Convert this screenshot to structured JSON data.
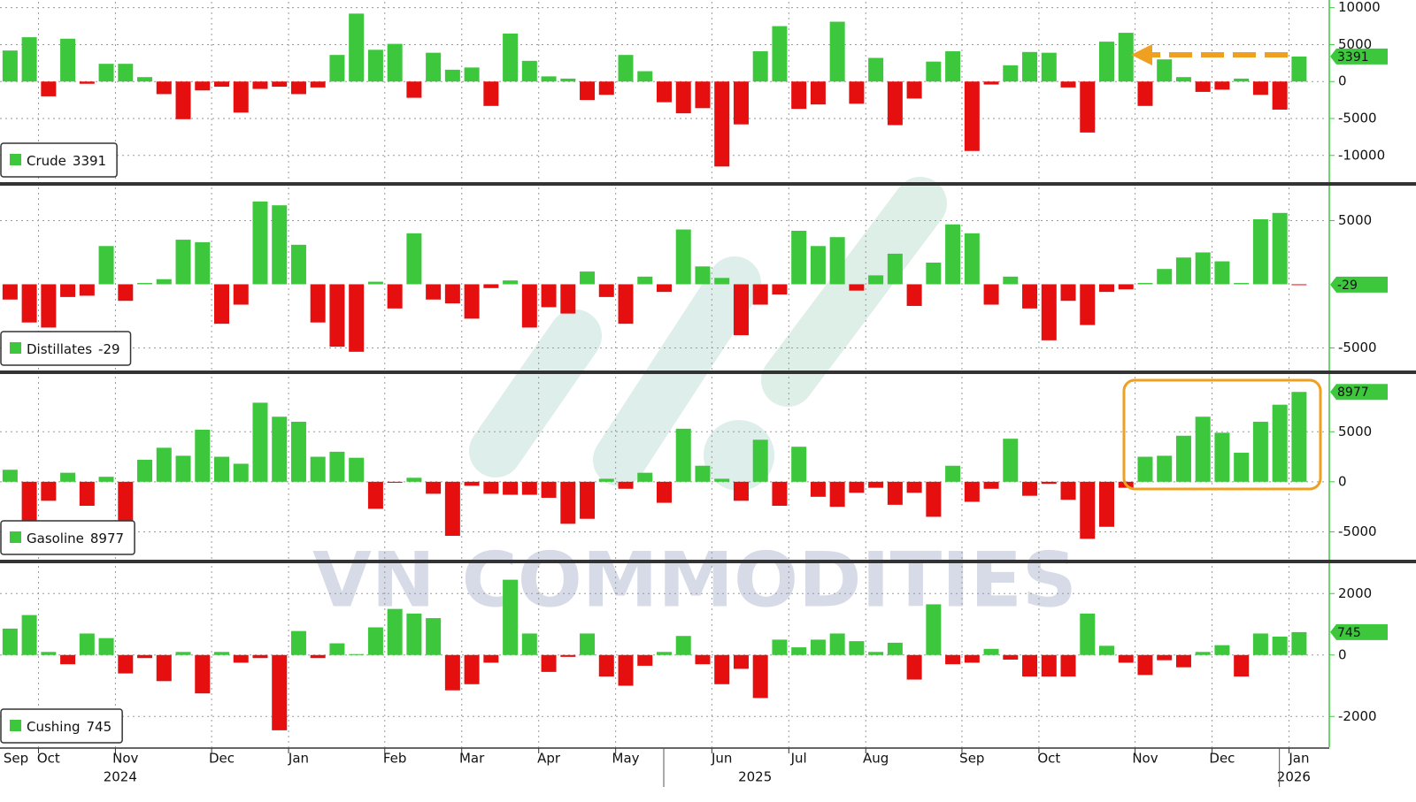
{
  "watermark": "VN COMMODITIES",
  "chart_data": [
    {
      "type": "bar",
      "grid": true,
      "legend": "bottom-left",
      "ylim": [
        -13500,
        10800
      ],
      "yticks": [
        10000,
        5000,
        0,
        -5000,
        -10000
      ],
      "series": [
        {
          "name": "Crude",
          "color": "#3dc73d",
          "negative_color": "#e50f0f",
          "values": [
            4200,
            6000,
            -2000,
            5800,
            -300,
            2400,
            2400,
            600,
            -1700,
            -5100,
            -1200,
            -700,
            -4200,
            -1000,
            -700,
            -1700,
            -800,
            3600,
            9200,
            4300,
            5100,
            -2200,
            3900,
            1600,
            1900,
            -3300,
            6500,
            2800,
            700,
            400,
            -2500,
            -1800,
            3600,
            1400,
            -2800,
            -4300,
            -3600,
            -11500,
            -5800,
            4100,
            7500,
            -3700,
            -3100,
            8100,
            -3000,
            3200,
            -5900,
            -2300,
            2700,
            4100,
            -9400,
            -400,
            2200,
            4000,
            3900,
            -800,
            -6900,
            5400,
            6600,
            -3300,
            3000,
            600,
            -1400,
            -1100,
            400,
            -1800,
            -3800,
            3391
          ]
        }
      ]
    },
    {
      "type": "bar",
      "grid": true,
      "legend": "bottom-left",
      "ylim": [
        -6700,
        7600
      ],
      "yticks": [
        5000,
        -5000
      ],
      "series": [
        {
          "name": "Distillates",
          "color": "#3dc73d",
          "negative_color": "#e50f0f",
          "values": [
            -1200,
            -3000,
            -3400,
            -1000,
            -900,
            3000,
            -1300,
            100,
            400,
            3500,
            3300,
            -3100,
            -1600,
            6500,
            6200,
            3100,
            -3000,
            -4900,
            -5300,
            200,
            -1900,
            4000,
            -1200,
            -1500,
            -2700,
            -300,
            300,
            -3400,
            -1800,
            -2300,
            1000,
            -1000,
            -3100,
            600,
            -600,
            4300,
            1400,
            500,
            -4000,
            -1600,
            -800,
            4200,
            3000,
            3700,
            -500,
            700,
            2400,
            -1700,
            1700,
            4700,
            4000,
            -1600,
            600,
            -1900,
            -4400,
            -1300,
            -3200,
            -600,
            -400,
            100,
            1200,
            2100,
            2500,
            1800,
            100,
            5100,
            5600,
            -29
          ]
        }
      ]
    },
    {
      "type": "bar",
      "grid": true,
      "legend": "bottom-left",
      "ylim": [
        -7700,
        10500
      ],
      "yticks": [
        5000,
        0,
        -5000
      ],
      "series": [
        {
          "name": "Gasoline",
          "color": "#3dc73d",
          "negative_color": "#e50f0f",
          "values": [
            1200,
            -4200,
            -1900,
            900,
            -2400,
            500,
            -4200,
            2200,
            3400,
            2600,
            5200,
            2500,
            1800,
            7900,
            6500,
            6000,
            2500,
            3000,
            2400,
            -2700,
            -100,
            400,
            -1200,
            -5400,
            -400,
            -1200,
            -1300,
            -1300,
            -1600,
            -4200,
            -3700,
            300,
            -700,
            900,
            -2100,
            5300,
            1600,
            300,
            -1900,
            4200,
            -2400,
            3500,
            -1500,
            -2500,
            -1100,
            -600,
            -2300,
            -1100,
            -3500,
            1600,
            -2000,
            -700,
            4300,
            -1400,
            -200,
            -1800,
            -5700,
            -4500,
            -600,
            2500,
            2600,
            4600,
            6500,
            4900,
            2900,
            6000,
            7700,
            8977
          ]
        }
      ]
    },
    {
      "type": "bar",
      "grid": true,
      "legend": "bottom-left",
      "ylim": [
        -3000,
        2900
      ],
      "yticks": [
        2000,
        0,
        -2000
      ],
      "categories": [
        "Sep",
        null,
        "Oct",
        null,
        null,
        null,
        "Nov",
        null,
        null,
        null,
        null,
        "Dec",
        null,
        null,
        null,
        "Jan",
        null,
        null,
        null,
        null,
        "Feb",
        null,
        null,
        null,
        "Mar",
        null,
        null,
        null,
        "Apr",
        null,
        null,
        null,
        "May",
        null,
        null,
        null,
        null,
        "Jun",
        null,
        null,
        null,
        "Jul",
        null,
        null,
        null,
        "Aug",
        null,
        null,
        null,
        null,
        "Sep",
        null,
        null,
        null,
        "Oct",
        null,
        null,
        null,
        null,
        "Nov",
        null,
        null,
        null,
        "Dec",
        null,
        null,
        null,
        "Jan"
      ],
      "year_labels": [
        null,
        null,
        null,
        null,
        null,
        null,
        "2024",
        null,
        null,
        null,
        null,
        null,
        null,
        null,
        null,
        null,
        null,
        null,
        null,
        null,
        null,
        null,
        null,
        null,
        null,
        null,
        null,
        null,
        null,
        null,
        null,
        null,
        null,
        null,
        null,
        null,
        null,
        null,
        null,
        "2025",
        null,
        null,
        null,
        null,
        null,
        null,
        null,
        null,
        null,
        null,
        null,
        null,
        null,
        null,
        null,
        null,
        null,
        null,
        null,
        null,
        null,
        null,
        null,
        null,
        null,
        null,
        null,
        "2026"
      ],
      "series": [
        {
          "name": "Cushing",
          "color": "#3dc73d",
          "negative_color": "#e50f0f",
          "values": [
            860,
            1300,
            100,
            -300,
            700,
            550,
            -600,
            -100,
            -850,
            100,
            -1250,
            100,
            -250,
            -100,
            -2450,
            780,
            -100,
            380,
            30,
            900,
            1500,
            1350,
            1200,
            -1150,
            -950,
            -250,
            2450,
            700,
            -550,
            -60,
            700,
            -700,
            -1000,
            -350,
            100,
            620,
            -300,
            -950,
            -450,
            -1400,
            500,
            250,
            500,
            700,
            450,
            100,
            400,
            -800,
            1650,
            -300,
            -250,
            200,
            -150,
            -700,
            -700,
            -700,
            1350,
            300,
            -250,
            -650,
            -170,
            -400,
            100,
            320,
            -700,
            700,
            600,
            745
          ]
        }
      ]
    }
  ]
}
